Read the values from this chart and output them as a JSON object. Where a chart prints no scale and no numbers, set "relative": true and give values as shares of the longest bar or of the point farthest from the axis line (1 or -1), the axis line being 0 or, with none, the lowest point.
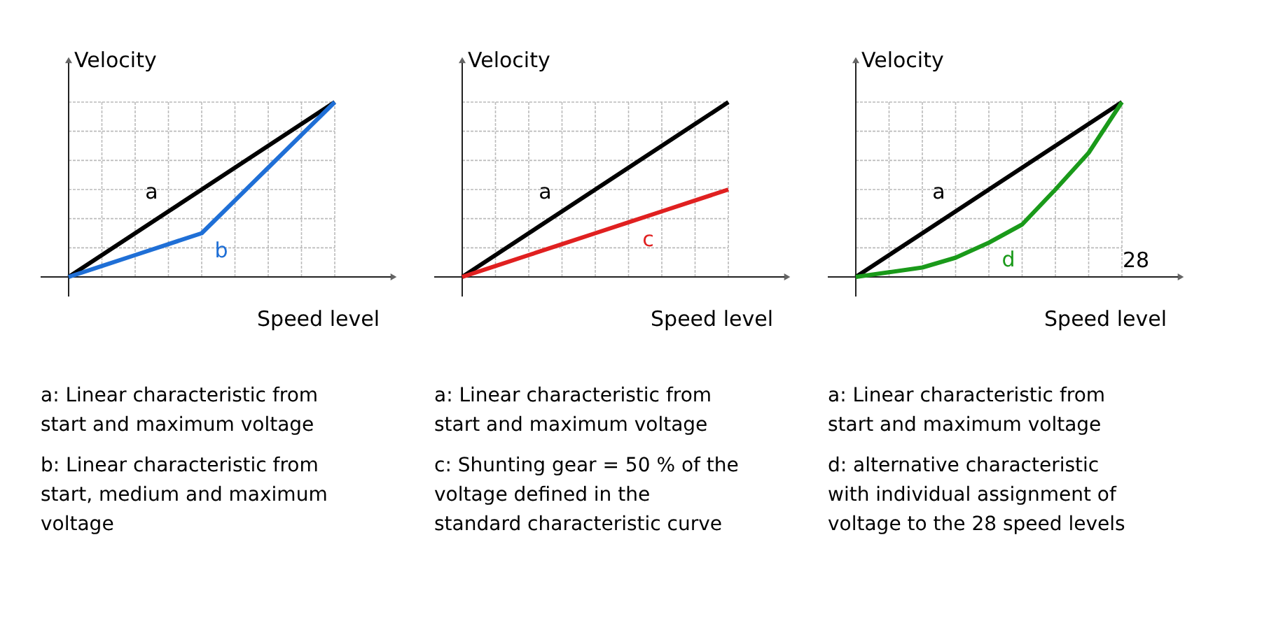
{
  "chart_data": [
    {
      "type": "line",
      "relative": true,
      "xlabel": "Speed level",
      "ylabel": "Velocity",
      "grid": true,
      "categories": [
        null,
        null,
        null,
        null,
        null,
        null,
        null,
        null,
        null
      ],
      "series": [
        {
          "name": "a",
          "color": "#000000",
          "values": [
            0,
            0.125,
            0.25,
            0.375,
            0.5,
            0.625,
            0.75,
            0.875,
            1
          ]
        },
        {
          "name": "b",
          "color": "#1f6fd6",
          "values": [
            0,
            0.0625,
            0.125,
            0.1875,
            0.25,
            0.4375,
            0.625,
            0.8125,
            1
          ]
        }
      ],
      "annotations": [
        "a: Linear characteristic from start and maximum voltage",
        "b: Linear characteristic from start, medium and maximum voltage"
      ]
    },
    {
      "type": "line",
      "relative": true,
      "xlabel": "Speed level",
      "ylabel": "Velocity",
      "grid": true,
      "categories": [
        null,
        null,
        null,
        null,
        null,
        null,
        null,
        null,
        null
      ],
      "series": [
        {
          "name": "a",
          "color": "#000000",
          "values": [
            0,
            0.125,
            0.25,
            0.375,
            0.5,
            0.625,
            0.75,
            0.875,
            1
          ]
        },
        {
          "name": "c",
          "color": "#e02020",
          "values": [
            0,
            0.0625,
            0.125,
            0.1875,
            0.25,
            0.3125,
            0.375,
            0.4375,
            0.5
          ]
        }
      ],
      "annotations": [
        "a: Linear characteristic from start and maximum voltage",
        "c: Shunting gear = 50 % of the voltage defined in the standard characteristic curve"
      ]
    },
    {
      "type": "line",
      "relative": true,
      "xlabel": "Speed level",
      "ylabel": "Velocity",
      "grid": true,
      "categories": [
        null,
        null,
        null,
        null,
        null,
        null,
        null,
        null,
        null
      ],
      "series": [
        {
          "name": "a",
          "color": "#000000",
          "values": [
            0,
            0.125,
            0.25,
            0.375,
            0.5,
            0.625,
            0.75,
            0.875,
            1
          ]
        },
        {
          "name": "d",
          "color": "#1a9a1a",
          "values": [
            0,
            0.027,
            0.054,
            0.11,
            0.196,
            0.3,
            0.5,
            0.71,
            1
          ]
        }
      ],
      "annotations": [
        "28",
        "a: Linear characteristic from start and maximum voltage",
        "d: alternative characteristic with individual assignment of voltage to the 28 speed levels"
      ]
    }
  ]
}
